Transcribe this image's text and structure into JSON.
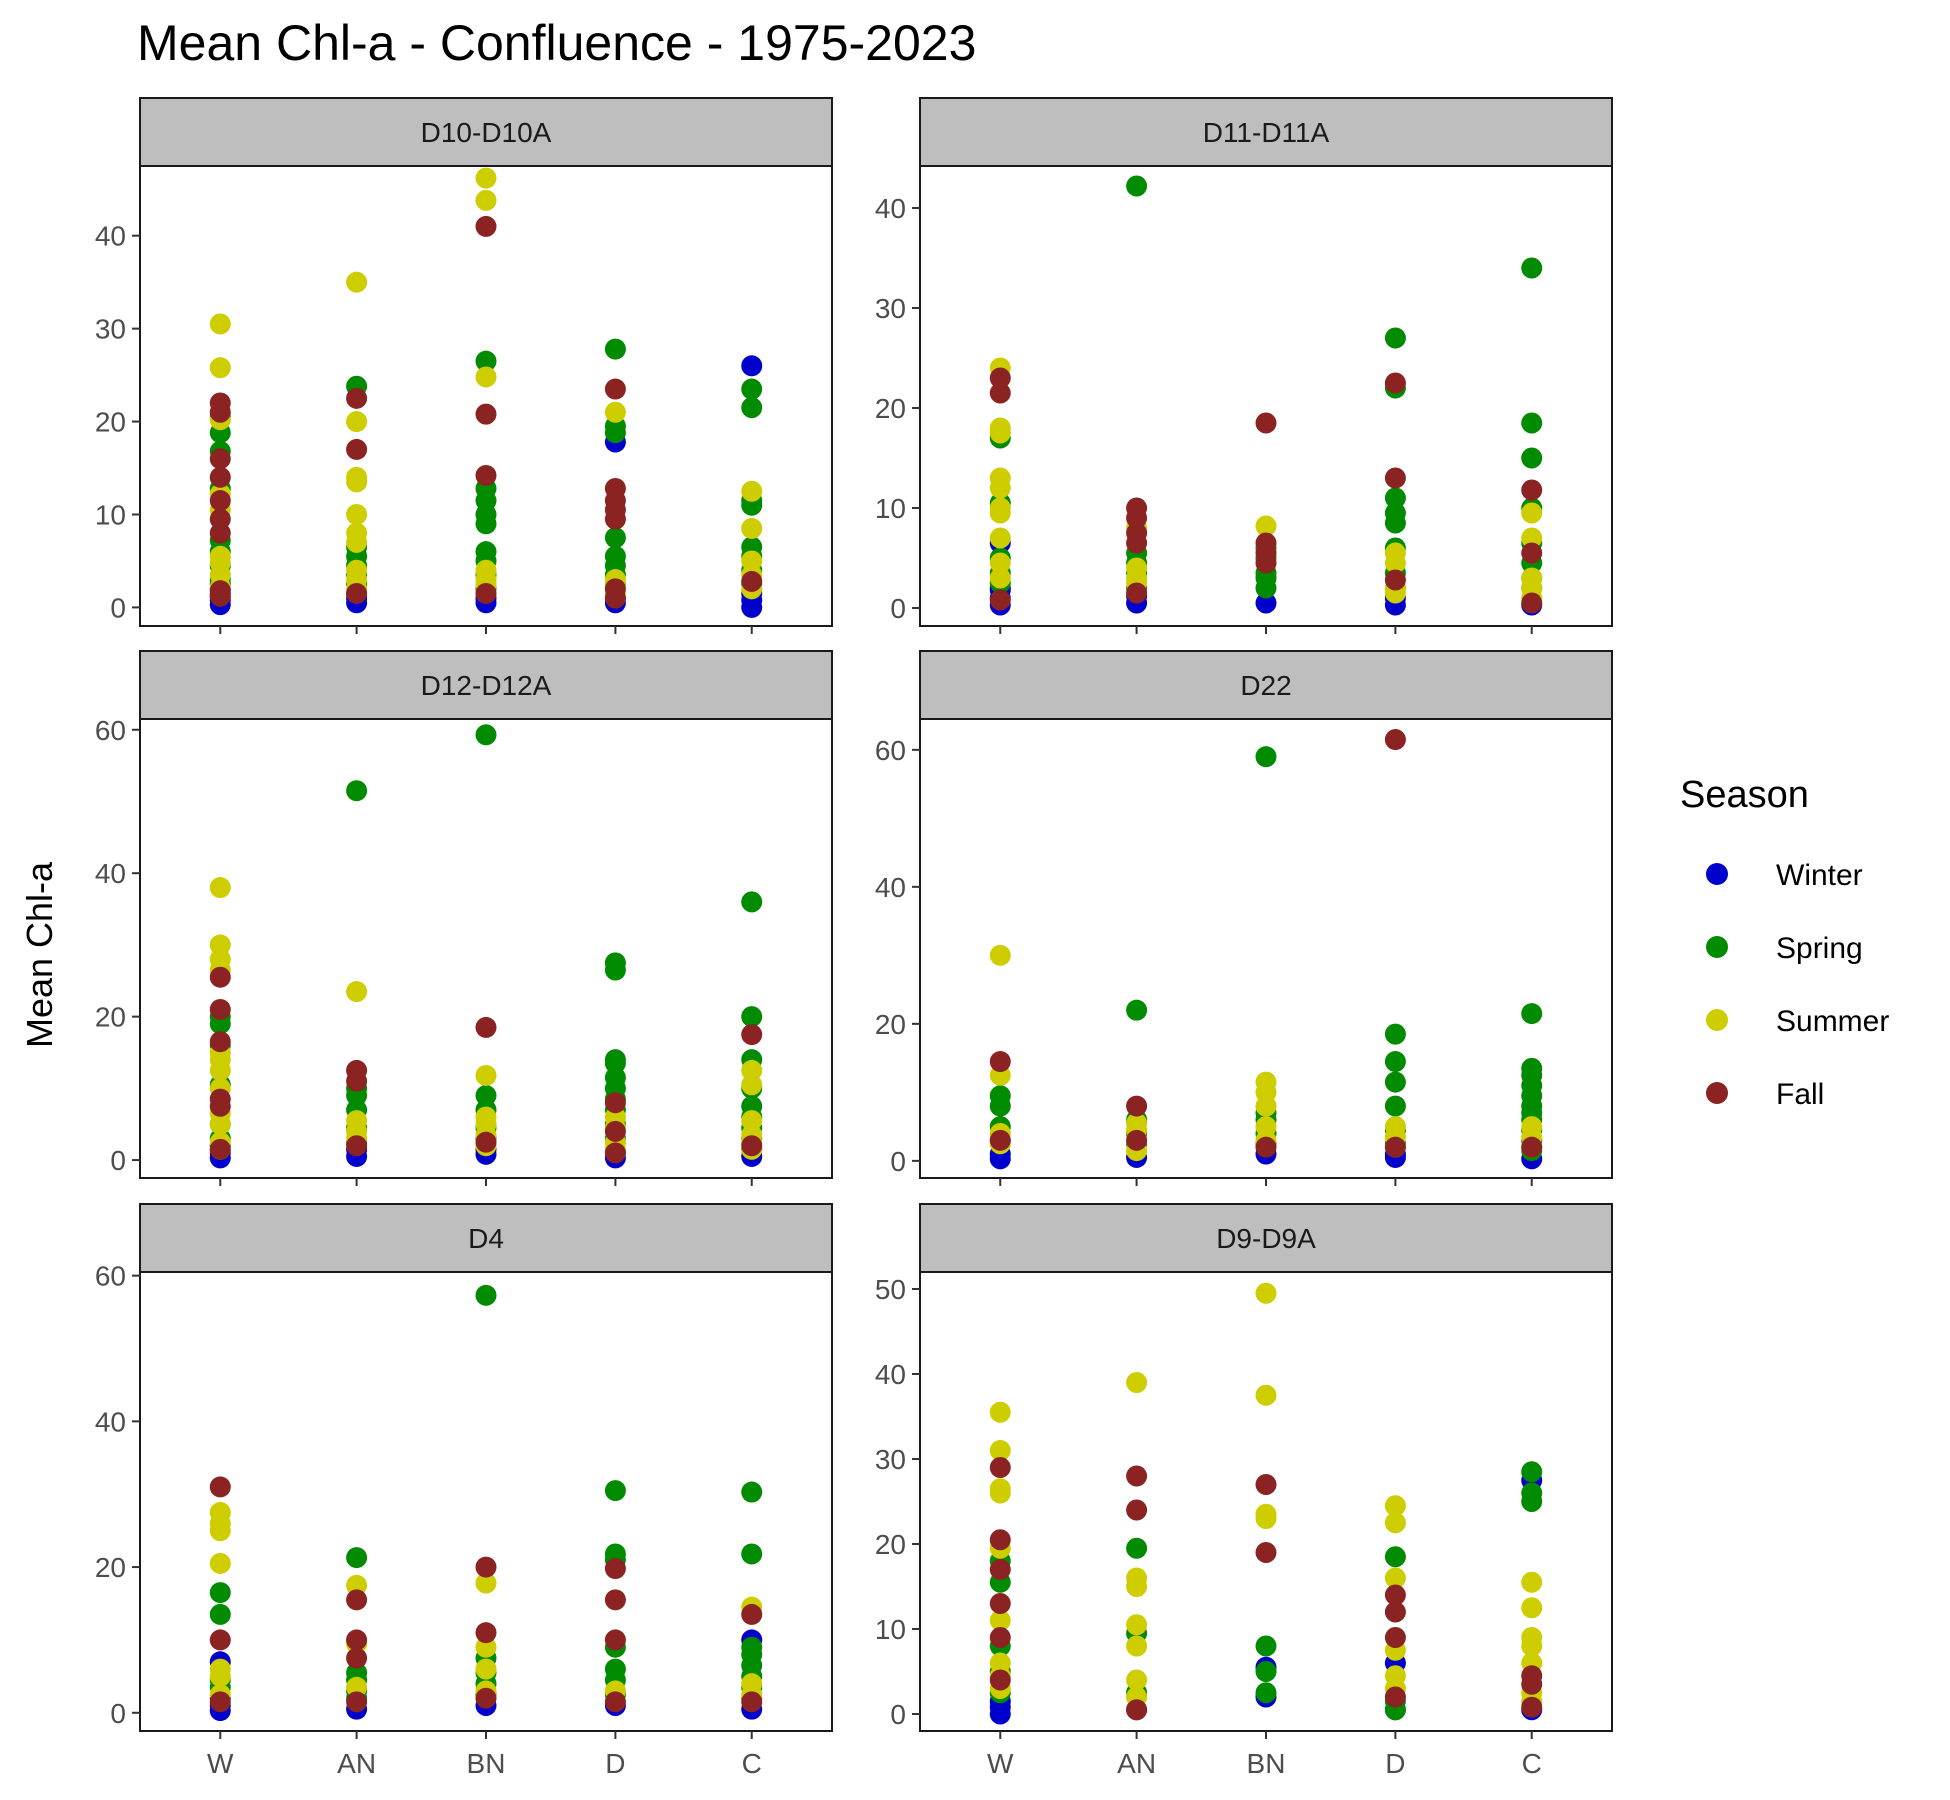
{
  "chart_data": {
    "type": "scatter",
    "title": "Mean Chl-a - Confluence - 1975-2023",
    "xlabel": "",
    "ylabel": "Mean Chl-a",
    "categories": [
      "W",
      "AN",
      "BN",
      "D",
      "C"
    ],
    "legend": {
      "title": "Season",
      "placement": "right",
      "entries": [
        {
          "name": "Winter",
          "color": "#0000CD"
        },
        {
          "name": "Spring",
          "color": "#008B00"
        },
        {
          "name": "Summer",
          "color": "#CDCD00"
        },
        {
          "name": "Fall",
          "color": "#8B2323"
        }
      ]
    },
    "grid": false,
    "panels": [
      {
        "name": "D10-D10A",
        "ylim": [
          -2,
          47.5
        ],
        "yticks": [
          0,
          10,
          20,
          30,
          40
        ],
        "points": {
          "W": {
            "Winter": [
              0.3,
              0.8,
              1.2,
              1.5,
              2.0,
              2.5
            ],
            "Spring": [
              3.0,
              4.5,
              6.0,
              7.2,
              12.8,
              16.8,
              18.8,
              20.5
            ],
            "Summer": [
              2.2,
              3.5,
              4.8,
              5.5,
              10.5,
              12.2,
              20.2,
              21.0,
              25.8,
              30.5
            ],
            "Fall": [
              1.2,
              1.8,
              8.0,
              9.5,
              11.5,
              14.0,
              16.0,
              21.0,
              22.0
            ]
          },
          "AN": {
            "Winter": [
              0.5,
              1.0,
              1.5
            ],
            "Spring": [
              2.5,
              3.5,
              4.5,
              5.5,
              6.5,
              23.8
            ],
            "Summer": [
              2.0,
              3.0,
              4.0,
              7.0,
              8.0,
              10.0,
              13.5,
              14.0,
              20.0,
              35.0
            ],
            "Fall": [
              1.5,
              17.0,
              22.5
            ]
          },
          "BN": {
            "Winter": [
              0.5,
              1.0
            ],
            "Spring": [
              2.0,
              3.5,
              5.0,
              6.0,
              9.0,
              10.0,
              11.5,
              12.8,
              26.5
            ],
            "Summer": [
              2.5,
              3.0,
              4.0,
              24.8,
              43.8,
              46.2
            ],
            "Fall": [
              1.5,
              14.2,
              20.8,
              41.0
            ]
          },
          "D": {
            "Winter": [
              0.5,
              1.0,
              17.8
            ],
            "Spring": [
              2.5,
              3.5,
              4.5,
              5.5,
              7.5,
              18.8,
              19.5,
              27.8
            ],
            "Summer": [
              1.5,
              2.5,
              3.0,
              21.0
            ],
            "Fall": [
              1.0,
              2.0,
              9.5,
              10.5,
              11.5,
              12.8,
              23.5
            ]
          },
          "C": {
            "Winter": [
              0.0,
              0.8,
              1.5,
              26.0
            ],
            "Spring": [
              2.5,
              4.0,
              5.5,
              6.5,
              11.0,
              11.5,
              21.5,
              23.5
            ],
            "Summer": [
              2.0,
              3.5,
              5.0,
              8.5,
              12.5
            ],
            "Fall": [
              2.8
            ]
          }
        }
      },
      {
        "name": "D11-D11A",
        "ylim": [
          -1.8,
          44.2
        ],
        "yticks": [
          0,
          10,
          20,
          30,
          40
        ],
        "points": {
          "W": {
            "Winter": [
              0.3,
              1.0,
              1.8,
              2.0,
              6.5
            ],
            "Spring": [
              2.5,
              3.5,
              5.0,
              10.5,
              17.0
            ],
            "Summer": [
              3.0,
              4.5,
              7.0,
              9.5,
              10.0,
              12.0,
              13.0,
              17.5,
              18.0,
              24.0
            ],
            "Fall": [
              0.8,
              21.5,
              23.0
            ]
          },
          "AN": {
            "Winter": [
              0.5,
              1.2
            ],
            "Spring": [
              2.0,
              3.5,
              4.5,
              5.5,
              42.2
            ],
            "Summer": [
              2.5,
              3.0,
              4.0,
              8.0
            ],
            "Fall": [
              1.5,
              6.5,
              7.5,
              9.0,
              10.0
            ]
          },
          "BN": {
            "Winter": [
              0.5
            ],
            "Spring": [
              2.0,
              3.0,
              3.5,
              5.0,
              6.0
            ],
            "Summer": [
              8.2
            ],
            "Fall": [
              4.5,
              5.5,
              6.5,
              18.5
            ]
          },
          "D": {
            "Winter": [
              0.3,
              1.0
            ],
            "Spring": [
              2.0,
              3.5,
              6.0,
              8.5,
              9.5,
              11.0,
              22.0,
              27.0
            ],
            "Summer": [
              1.5,
              2.0,
              4.5,
              5.5
            ],
            "Fall": [
              2.8,
              13.0,
              22.5
            ]
          },
          "C": {
            "Winter": [
              0.3
            ],
            "Spring": [
              2.0,
              3.0,
              4.5,
              6.5,
              10.0,
              15.0,
              18.5,
              34.0
            ],
            "Summer": [
              1.0,
              2.0,
              3.0,
              7.0,
              9.5
            ],
            "Fall": [
              0.5,
              5.5,
              11.8
            ]
          }
        }
      },
      {
        "name": "D12-D12A",
        "ylim": [
          -2.5,
          61.5
        ],
        "yticks": [
          0,
          20,
          40,
          60
        ],
        "points": {
          "W": {
            "Winter": [
              0.3,
              1.0,
              2.0
            ],
            "Spring": [
              3.0,
              5.0,
              10.5,
              16.0,
              19.0,
              20.0
            ],
            "Summer": [
              1.5,
              2.5,
              5.0,
              6.5,
              10.0,
              12.5,
              14.0,
              15.0,
              26.5,
              28.0,
              30.0,
              38.0
            ],
            "Fall": [
              1.5,
              7.5,
              8.5,
              16.5,
              21.0,
              25.5
            ]
          },
          "AN": {
            "Winter": [
              0.5,
              1.5
            ],
            "Spring": [
              2.5,
              4.5,
              7.0,
              9.0,
              10.0,
              51.5
            ],
            "Summer": [
              3.0,
              4.0,
              5.5,
              23.5
            ],
            "Fall": [
              2.0,
              11.0,
              12.5
            ]
          },
          "BN": {
            "Winter": [
              0.8,
              1.5
            ],
            "Spring": [
              3.0,
              4.5,
              7.0,
              9.0,
              59.3
            ],
            "Summer": [
              2.0,
              3.5,
              5.0,
              6.0,
              11.8
            ],
            "Fall": [
              2.5,
              18.5
            ]
          },
          "D": {
            "Winter": [
              0.3,
              1.0
            ],
            "Spring": [
              3.0,
              5.0,
              7.0,
              8.5,
              10.0,
              11.5,
              13.5,
              14.0,
              26.5,
              27.5
            ],
            "Summer": [
              1.5,
              2.5,
              4.5,
              6.0
            ],
            "Fall": [
              1.0,
              4.0,
              8.0
            ]
          },
          "C": {
            "Winter": [
              0.5,
              1.5
            ],
            "Spring": [
              3.0,
              4.5,
              6.0,
              7.5,
              10.0,
              14.0,
              20.0,
              36.0
            ],
            "Summer": [
              1.5,
              2.5,
              3.5,
              5.5,
              10.5,
              12.5
            ],
            "Fall": [
              2.0,
              17.5
            ]
          }
        }
      },
      {
        "name": "D22",
        "ylim": [
          -2.5,
          64.5
        ],
        "yticks": [
          0,
          20,
          40,
          60
        ],
        "points": {
          "W": {
            "Winter": [
              0.3,
              1.0
            ],
            "Spring": [
              3.0,
              5.0,
              8.0,
              9.5
            ],
            "Summer": [
              2.5,
              4.0,
              12.5,
              30.0
            ],
            "Fall": [
              3.0,
              14.5
            ]
          },
          "AN": {
            "Winter": [
              0.5
            ],
            "Spring": [
              2.5,
              4.0,
              6.0,
              22.0
            ],
            "Summer": [
              1.5,
              3.0,
              4.5,
              5.5
            ],
            "Fall": [
              3.0,
              8.0
            ]
          },
          "BN": {
            "Winter": [
              1.0
            ],
            "Spring": [
              2.5,
              4.0,
              6.0,
              7.0,
              59.0
            ],
            "Summer": [
              3.0,
              5.0,
              8.0,
              10.0,
              11.5
            ],
            "Fall": [
              2.0
            ]
          },
          "D": {
            "Winter": [
              0.5,
              1.0
            ],
            "Spring": [
              2.5,
              4.5,
              8.0,
              11.5,
              14.5,
              18.5
            ],
            "Summer": [
              2.0,
              3.5,
              5.0
            ],
            "Fall": [
              2.0,
              61.5
            ]
          },
          "C": {
            "Winter": [
              0.3
            ],
            "Spring": [
              1.5,
              3.0,
              4.5,
              6.0,
              7.0,
              8.0,
              9.5,
              11.0,
              12.5,
              13.5,
              21.5
            ],
            "Summer": [
              2.0,
              3.5,
              5.0
            ],
            "Fall": [
              2.0
            ]
          }
        }
      },
      {
        "name": "D4",
        "ylim": [
          -2.5,
          60.5
        ],
        "yticks": [
          0,
          20,
          40,
          60
        ],
        "points": {
          "W": {
            "Winter": [
              0.3,
              1.0,
              2.0,
              7.0
            ],
            "Spring": [
              3.5,
              4.5,
              13.5,
              16.5
            ],
            "Summer": [
              2.5,
              5.0,
              6.0,
              20.5,
              25.0,
              26.0,
              27.5
            ],
            "Fall": [
              1.5,
              10.0,
              31.0
            ]
          },
          "AN": {
            "Winter": [
              0.5
            ],
            "Spring": [
              2.0,
              3.0,
              4.5,
              5.5,
              21.3
            ],
            "Summer": [
              3.5,
              9.5,
              17.5
            ],
            "Fall": [
              1.5,
              7.5,
              10.0,
              15.5
            ]
          },
          "BN": {
            "Winter": [
              1.0
            ],
            "Spring": [
              2.5,
              4.0,
              5.5,
              7.5,
              57.3
            ],
            "Summer": [
              3.0,
              6.0,
              9.0,
              17.8
            ],
            "Fall": [
              2.0,
              11.0,
              20.0
            ]
          },
          "D": {
            "Winter": [
              1.0
            ],
            "Spring": [
              2.5,
              4.5,
              6.0,
              9.0,
              21.0,
              21.8,
              30.5
            ],
            "Summer": [
              3.0
            ],
            "Fall": [
              1.5,
              10.0,
              15.5,
              19.8
            ]
          },
          "C": {
            "Winter": [
              0.5,
              10.0
            ],
            "Spring": [
              2.0,
              3.5,
              5.0,
              6.5,
              8.0,
              9.0,
              21.8,
              30.3
            ],
            "Summer": [
              2.5,
              4.0,
              14.5
            ],
            "Fall": [
              1.5,
              13.5
            ]
          }
        }
      },
      {
        "name": "D9-D9A",
        "ylim": [
          -2,
          52
        ],
        "yticks": [
          0,
          10,
          20,
          30,
          40,
          50
        ],
        "points": {
          "W": {
            "Winter": [
              0.0,
              0.8,
              1.5
            ],
            "Spring": [
              2.5,
              5.0,
              8.0,
              15.5,
              18.0
            ],
            "Summer": [
              3.0,
              4.5,
              6.0,
              11.0,
              19.5,
              26.0,
              26.5,
              31.0,
              35.5
            ],
            "Fall": [
              4.0,
              9.0,
              13.0,
              17.0,
              20.5,
              29.0
            ]
          },
          "AN": {
            "Winter": [
              0.5
            ],
            "Spring": [
              2.5,
              9.5,
              19.5
            ],
            "Summer": [
              2.0,
              4.0,
              8.0,
              10.5,
              15.0,
              16.0,
              39.0
            ],
            "Fall": [
              0.5,
              24.0,
              28.0
            ]
          },
          "BN": {
            "Winter": [
              2.0,
              5.5
            ],
            "Spring": [
              2.5,
              5.0,
              8.0
            ],
            "Summer": [
              23.0,
              23.5,
              37.5,
              49.5
            ],
            "Fall": [
              19.0,
              27.0
            ]
          },
          "D": {
            "Winter": [
              0.5,
              6.0
            ],
            "Spring": [
              0.5,
              1.5,
              18.5
            ],
            "Summer": [
              3.0,
              4.5,
              7.5,
              16.0,
              22.5,
              24.5
            ],
            "Fall": [
              2.0,
              9.0,
              12.0,
              14.0
            ]
          },
          "C": {
            "Winter": [
              0.5,
              27.5
            ],
            "Spring": [
              25.0,
              26.0,
              28.5
            ],
            "Summer": [
              1.5,
              2.5,
              6.0,
              8.0,
              9.0,
              12.5,
              15.5
            ],
            "Fall": [
              0.8,
              3.5,
              4.5
            ]
          }
        }
      }
    ]
  }
}
